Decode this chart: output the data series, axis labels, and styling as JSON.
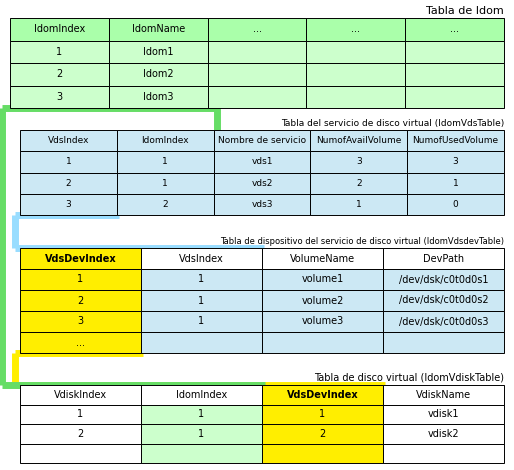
{
  "title1": "Tabla de Idom",
  "title2": "Tabla del servicio de disco virtual (IdomVdsTable)",
  "title3": "Tabla de dispositivo del servicio de disco virtual (IdomVdsdevTable)",
  "title4": "Tabla de disco virtual (IdomVdiskTable)",
  "table1_headers": [
    "IdomIndex",
    "IdomName",
    "...",
    "...",
    "..."
  ],
  "table1_rows": [
    [
      "1",
      "Idom1",
      "",
      "",
      ""
    ],
    [
      "2",
      "Idom2",
      "",
      "",
      ""
    ],
    [
      "3",
      "Idom3",
      "",
      "",
      ""
    ]
  ],
  "table2_headers": [
    "VdsIndex",
    "IdomIndex",
    "Nombre de servicio",
    "NumofAvailVolume",
    "NumofUsedVolume"
  ],
  "table2_rows": [
    [
      "1",
      "1",
      "vds1",
      "3",
      "3"
    ],
    [
      "2",
      "1",
      "vds2",
      "2",
      "1"
    ],
    [
      "3",
      "2",
      "vds3",
      "1",
      "0"
    ]
  ],
  "table3_headers": [
    "VdsDevIndex",
    "VdsIndex",
    "VolumeName",
    "DevPath"
  ],
  "table3_rows": [
    [
      "1",
      "1",
      "volume1",
      "/dev/dsk/c0t0d0s1"
    ],
    [
      "2",
      "1",
      "volume2",
      "/dev/dsk/c0t0d0s2"
    ],
    [
      "3",
      "1",
      "volume3",
      "/dev/dsk/c0t0d0s3"
    ],
    [
      "...",
      "",
      "",
      ""
    ]
  ],
  "table4_headers": [
    "VdiskIndex",
    "IdomIndex",
    "VdsDevIndex",
    "VdiskName"
  ],
  "table4_rows": [
    [
      "1",
      "1",
      "1",
      "vdisk1"
    ],
    [
      "2",
      "1",
      "2",
      "vdisk2"
    ],
    [
      "",
      "",
      "",
      ""
    ]
  ],
  "GREEN_H": "#aaffaa",
  "GREEN_R": "#ccffcc",
  "BLUE": "#cce8f4",
  "YELLOW": "#ffee00",
  "WHITE": "#ffffff",
  "conn_green": "#66dd66",
  "conn_blue": "#99ddff",
  "conn_yellow": "#ffee00"
}
